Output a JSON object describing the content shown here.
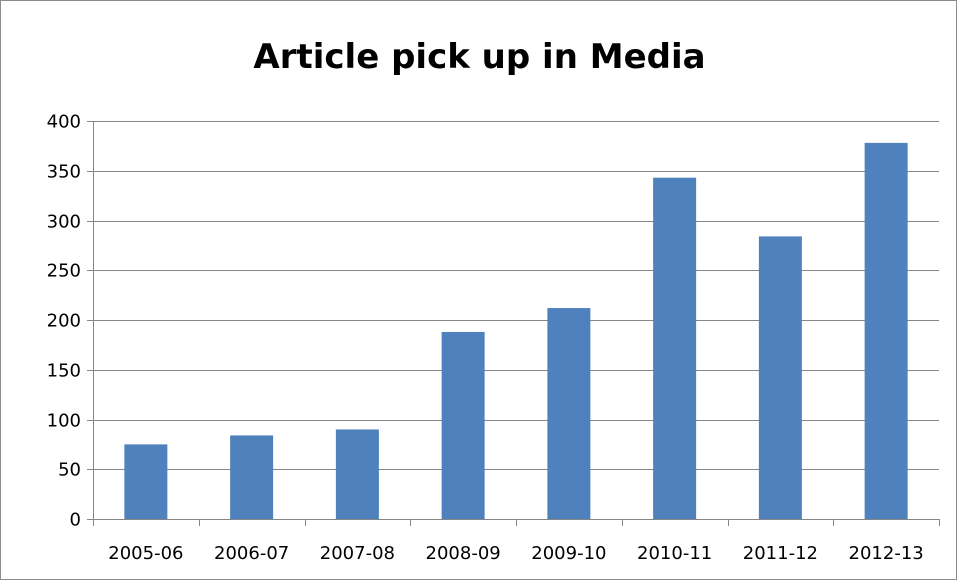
{
  "chart_data": {
    "type": "bar",
    "title": "Article pick up in Media",
    "xlabel": "",
    "ylabel": "",
    "categories": [
      "2005-06",
      "2006-07",
      "2007-08",
      "2008-09",
      "2009-10",
      "2010-11",
      "2011-12",
      "2012-13"
    ],
    "series": [
      {
        "values": [
          75,
          84,
          90,
          188,
          212,
          343,
          284,
          378
        ]
      }
    ],
    "ylim": [
      0,
      400
    ],
    "yticks": [
      "0",
      "50",
      "100",
      "150",
      "200",
      "250",
      "300",
      "350",
      "400"
    ],
    "grid": true,
    "legend": "none",
    "colors": {
      "bar": "#4f81bd",
      "gridline": "#868686",
      "axis": "#868686"
    }
  }
}
